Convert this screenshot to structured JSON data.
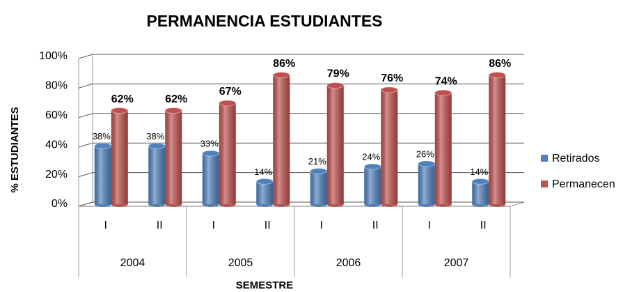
{
  "chart_data": {
    "type": "bar3d",
    "title": "PERMANENCIA ESTUDIANTES",
    "y_label": "% ESTUDIANTES",
    "x_label": "SEMESTRE",
    "categories": [
      "I",
      "II",
      "I",
      "II",
      "I",
      "II",
      "I",
      "II"
    ],
    "groups": [
      "2004",
      "2005",
      "2006",
      "2007"
    ],
    "series": [
      {
        "name": "Retirados",
        "color": "#4f81bd",
        "values": [
          38,
          38,
          33,
          14,
          21,
          24,
          26,
          14
        ],
        "value_labels": [
          "38%",
          "38%",
          "33%",
          "14%",
          "21%",
          "24%",
          "26%",
          "14%"
        ]
      },
      {
        "name": "Permanecen",
        "color": "#c0504d",
        "values": [
          62,
          62,
          67,
          86,
          79,
          76,
          74,
          86
        ],
        "value_labels": [
          "62%",
          "62%",
          "67%",
          "86%",
          "79%",
          "76%",
          "74%",
          "86%"
        ]
      }
    ],
    "ylim": [
      0,
      100
    ],
    "yticks": [
      {
        "value": 0,
        "label": "0%"
      },
      {
        "value": 20,
        "label": "20%"
      },
      {
        "value": 40,
        "label": "40%"
      },
      {
        "value": 60,
        "label": "60%"
      },
      {
        "value": 80,
        "label": "80%"
      },
      {
        "value": 100,
        "label": "100%"
      }
    ],
    "grid": true,
    "legend": "right"
  }
}
